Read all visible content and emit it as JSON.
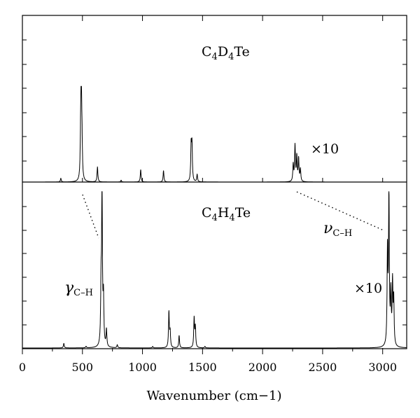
{
  "chart_data": {
    "type": "line",
    "xlabel": "Wavenumber (cm−1)",
    "xlim": [
      0,
      3200
    ],
    "x_ticks": [
      0,
      500,
      1000,
      1500,
      2000,
      2500,
      3000
    ],
    "grid": false,
    "panels": [
      {
        "name": "C4D4Te",
        "label": {
          "text": "C",
          "s1": "4",
          "t2": "D",
          "s2": "4",
          "t3": "Te"
        },
        "scale_note": "×10",
        "peaks": [
          {
            "x": 320,
            "h": 0.04
          },
          {
            "x": 485,
            "h": 0.36
          },
          {
            "x": 490,
            "h": 1.0
          },
          {
            "x": 496,
            "h": 0.35
          },
          {
            "x": 625,
            "h": 0.16
          },
          {
            "x": 822,
            "h": 0.02
          },
          {
            "x": 985,
            "h": 0.13
          },
          {
            "x": 1175,
            "h": 0.12
          },
          {
            "x": 1405,
            "h": 0.37
          },
          {
            "x": 1412,
            "h": 0.38
          },
          {
            "x": 1455,
            "h": 0.08
          },
          {
            "x": 2255,
            "h": 0.18
          },
          {
            "x": 2270,
            "h": 0.38
          },
          {
            "x": 2285,
            "h": 0.26
          },
          {
            "x": 2300,
            "h": 0.24
          },
          {
            "x": 2315,
            "h": 0.13
          }
        ]
      },
      {
        "name": "C4H4Te",
        "label": {
          "text": "C",
          "s1": "4",
          "t2": "H",
          "s2": "4",
          "t3": "Te"
        },
        "scale_note": "×10",
        "peaks": [
          {
            "x": 345,
            "h": 0.03
          },
          {
            "x": 530,
            "h": 0.01
          },
          {
            "x": 655,
            "h": 0.35
          },
          {
            "x": 663,
            "h": 1.0
          },
          {
            "x": 675,
            "h": 0.3
          },
          {
            "x": 700,
            "h": 0.11
          },
          {
            "x": 790,
            "h": 0.02
          },
          {
            "x": 1085,
            "h": 0.01
          },
          {
            "x": 1220,
            "h": 0.23
          },
          {
            "x": 1230,
            "h": 0.1
          },
          {
            "x": 1305,
            "h": 0.08
          },
          {
            "x": 1430,
            "h": 0.19
          },
          {
            "x": 1440,
            "h": 0.13
          },
          {
            "x": 1520,
            "h": 0.01
          },
          {
            "x": 3040,
            "h": 0.6
          },
          {
            "x": 3052,
            "h": 0.97
          },
          {
            "x": 3068,
            "h": 0.32
          },
          {
            "x": 3082,
            "h": 0.4
          },
          {
            "x": 3092,
            "h": 0.29
          }
        ]
      }
    ],
    "annotations": {
      "gamma": {
        "sym": "γ",
        "sub": "C–H"
      },
      "nu": {
        "sym": "ν",
        "sub": "C–H"
      }
    }
  }
}
